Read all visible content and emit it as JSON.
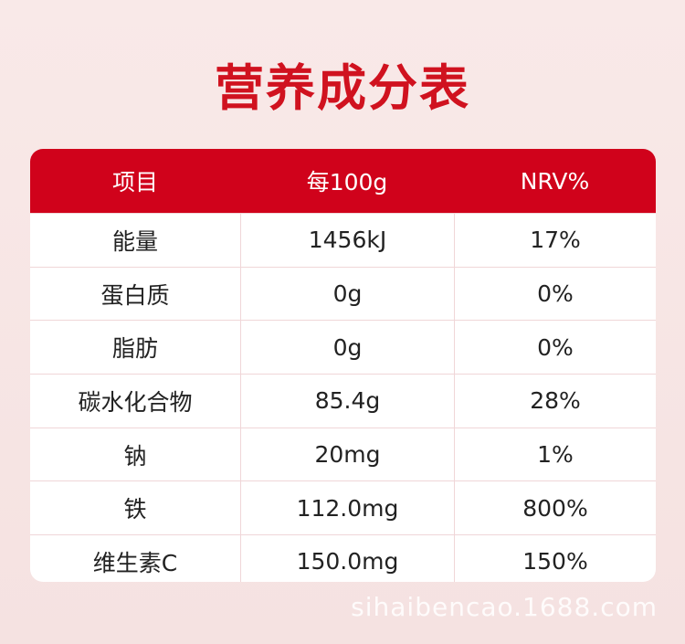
{
  "header": {
    "title": "营养成分表"
  },
  "table": {
    "columns": [
      "项目",
      "每100g",
      "NRV%"
    ],
    "rows": [
      [
        "能量",
        "1456kJ",
        "17%"
      ],
      [
        "蛋白质",
        "0g",
        "0%"
      ],
      [
        "脂肪",
        "0g",
        "0%"
      ],
      [
        "碳水化合物",
        "85.4g",
        "28%"
      ],
      [
        "钠",
        "20mg",
        "1%"
      ],
      [
        "铁",
        "112.0mg",
        "800%"
      ],
      [
        "维生素C",
        "150.0mg",
        "150%"
      ]
    ]
  },
  "watermark": "sihaibencao.1688.com"
}
